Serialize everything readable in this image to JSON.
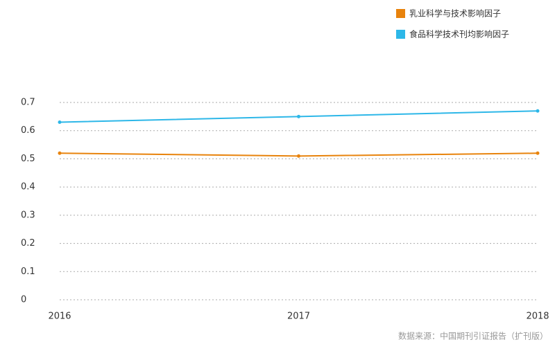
{
  "chart_data": {
    "type": "line",
    "x": [
      2016,
      2017,
      2018
    ],
    "xlim": [
      2016,
      2018
    ],
    "xticks": [
      2016,
      2017,
      2018
    ],
    "ylim": [
      0,
      0.7
    ],
    "yticks": [
      0,
      0.1,
      0.2,
      0.3,
      0.4,
      0.5,
      0.6,
      0.7
    ],
    "grid": true,
    "legend": "top-right",
    "series": [
      {
        "name": "乳业科学与技术影响因子",
        "color": "#e8830c",
        "values": [
          0.52,
          0.51,
          0.52
        ]
      },
      {
        "name": "食品科学技术刊均影响因子",
        "color": "#2db7e8",
        "values": [
          0.63,
          0.65,
          0.67
        ]
      }
    ],
    "source": "数据来源：中国期刊引证报告（扩刊版）"
  }
}
